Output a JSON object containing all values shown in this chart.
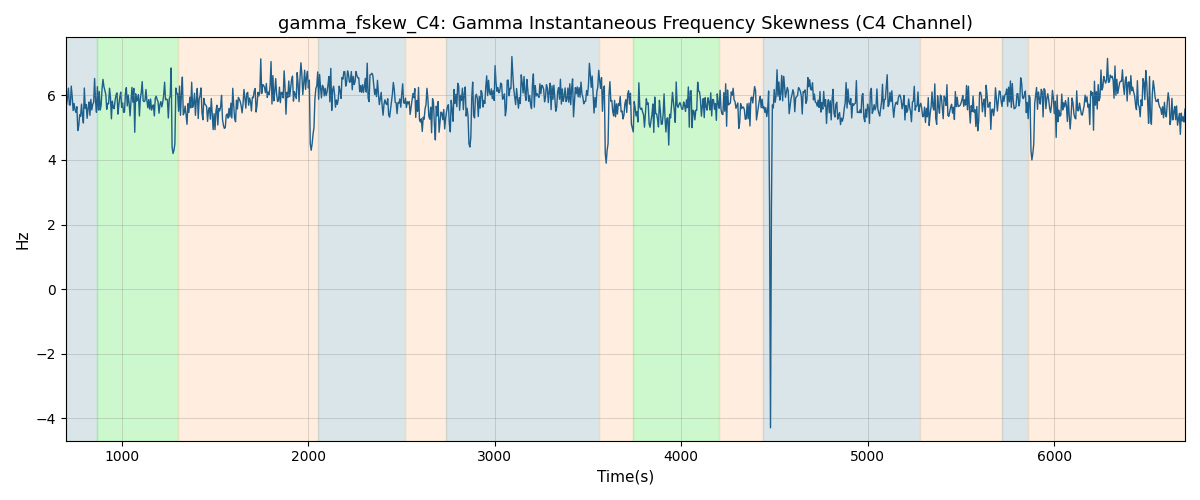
{
  "title": "gamma_fskew_C4: Gamma Instantaneous Frequency Skewness (C4 Channel)",
  "xlabel": "Time(s)",
  "ylabel": "Hz",
  "xlim": [
    700,
    6700
  ],
  "ylim": [
    -4.7,
    7.8
  ],
  "yticks": [
    -4,
    -2,
    0,
    2,
    4,
    6
  ],
  "xticks": [
    1000,
    2000,
    3000,
    4000,
    5000,
    6000
  ],
  "bg_regions": [
    {
      "xmin": 700,
      "xmax": 870,
      "color": "#AEC6CF",
      "alpha": 0.45
    },
    {
      "xmin": 870,
      "xmax": 1300,
      "color": "#90EE90",
      "alpha": 0.45
    },
    {
      "xmin": 1300,
      "xmax": 2050,
      "color": "#FFDAB9",
      "alpha": 0.45
    },
    {
      "xmin": 2050,
      "xmax": 2520,
      "color": "#AEC6CF",
      "alpha": 0.45
    },
    {
      "xmin": 2520,
      "xmax": 2740,
      "color": "#FFDAB9",
      "alpha": 0.45
    },
    {
      "xmin": 2740,
      "xmax": 3560,
      "color": "#AEC6CF",
      "alpha": 0.45
    },
    {
      "xmin": 3560,
      "xmax": 3740,
      "color": "#FFDAB9",
      "alpha": 0.45
    },
    {
      "xmin": 3740,
      "xmax": 4200,
      "color": "#90EE90",
      "alpha": 0.45
    },
    {
      "xmin": 4200,
      "xmax": 4440,
      "color": "#FFDAB9",
      "alpha": 0.45
    },
    {
      "xmin": 4440,
      "xmax": 5280,
      "color": "#AEC6CF",
      "alpha": 0.45
    },
    {
      "xmin": 5280,
      "xmax": 5720,
      "color": "#FFDAB9",
      "alpha": 0.45
    },
    {
      "xmin": 5720,
      "xmax": 5860,
      "color": "#AEC6CF",
      "alpha": 0.45
    },
    {
      "xmin": 5860,
      "xmax": 6700,
      "color": "#FFDAB9",
      "alpha": 0.45
    }
  ],
  "line_color": "#1f5f8b",
  "line_width": 1.0,
  "signal_seed": 42,
  "signal_mean": 5.75,
  "signal_std": 0.32,
  "n_points": 1200,
  "title_fontsize": 13,
  "label_fontsize": 11
}
